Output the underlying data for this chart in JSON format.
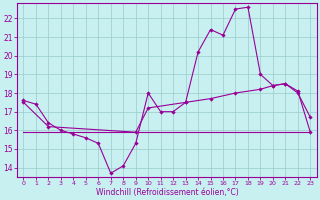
{
  "xlabel": "Windchill (Refroidissement éolien,°C)",
  "background_color": "#c8f0f0",
  "grid_color": "#99cccc",
  "line_color": "#990099",
  "x_ticks": [
    0,
    1,
    2,
    3,
    4,
    5,
    6,
    7,
    8,
    9,
    10,
    11,
    12,
    13,
    14,
    15,
    16,
    17,
    18,
    19,
    20,
    21,
    22,
    23
  ],
  "y_ticks": [
    14,
    15,
    16,
    17,
    18,
    19,
    20,
    21,
    22
  ],
  "ylim": [
    13.5,
    22.8
  ],
  "xlim": [
    -0.5,
    23.5
  ],
  "curve1_x": [
    0,
    1,
    2,
    3,
    4,
    5,
    6,
    7,
    8,
    9,
    10,
    11,
    12,
    13,
    14,
    15,
    16,
    17,
    18,
    19,
    20,
    21,
    22,
    23
  ],
  "curve1_y": [
    17.6,
    17.4,
    16.4,
    16.0,
    15.8,
    15.6,
    15.3,
    13.7,
    14.1,
    15.3,
    18.0,
    17.0,
    17.0,
    17.5,
    20.2,
    21.4,
    21.1,
    22.5,
    22.6,
    19.0,
    18.4,
    18.5,
    18.0,
    16.7
  ],
  "curve2_x": [
    0,
    2,
    9,
    10,
    13,
    15,
    17,
    19,
    20,
    21,
    22,
    23
  ],
  "curve2_y": [
    17.5,
    16.2,
    15.9,
    17.2,
    17.5,
    17.7,
    18.0,
    18.2,
    18.4,
    18.5,
    18.1,
    15.9
  ],
  "curve3_x": [
    0,
    23
  ],
  "curve3_y": [
    15.9,
    15.9
  ]
}
